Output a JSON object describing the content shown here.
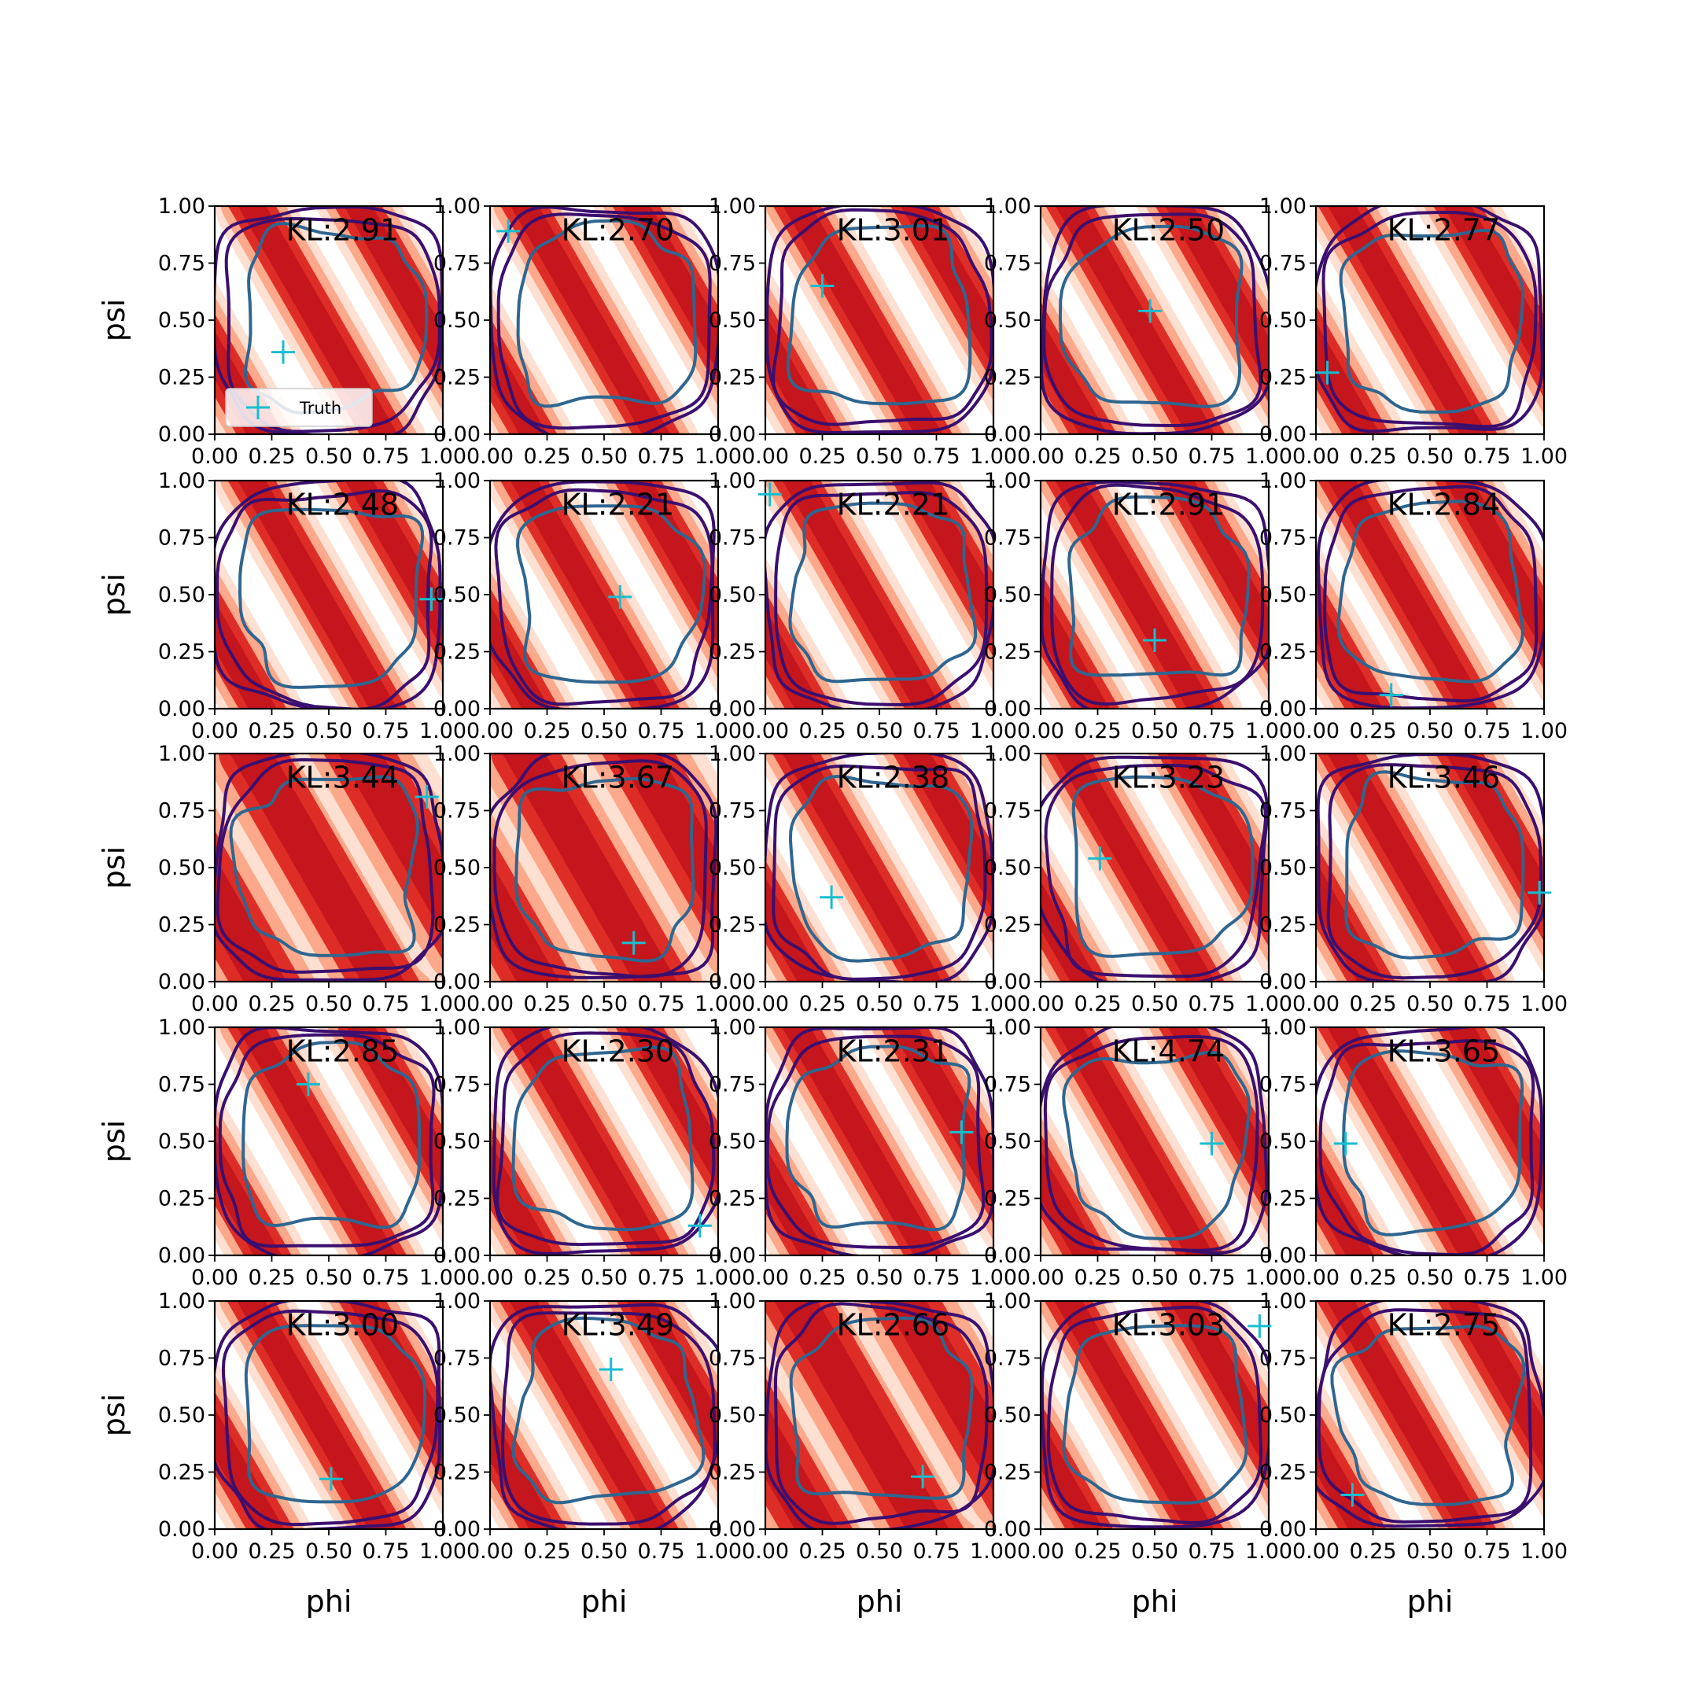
{
  "figure": {
    "xlabel": "phi",
    "ylabel": "psi",
    "legend_label": "Truth"
  },
  "colors": {
    "density_light": "#fee0d2",
    "density_mid": "#fca88a",
    "density_dark": "#de2d26",
    "density_darker": "#c4161c",
    "contour_outer": "#3b0f6f",
    "contour_inner": "#2f6690",
    "truth_marker": "#17becf"
  },
  "chart_data": {
    "type": "scatter",
    "rows": 5,
    "cols": 5,
    "xlim": [
      0,
      1
    ],
    "ylim": [
      0,
      1
    ],
    "xticks": [
      "0.00",
      "0.25",
      "0.50",
      "0.75",
      "1.00"
    ],
    "yticks": [
      "0.00",
      "0.25",
      "0.50",
      "0.75",
      "1.00"
    ],
    "grid": false,
    "legend_position": "lower-left of first panel",
    "panels": [
      {
        "kl_text": "KL:2.91",
        "truth": [
          0.3,
          0.36
        ]
      },
      {
        "kl_text": "KL:2.70",
        "truth": [
          0.08,
          0.89
        ]
      },
      {
        "kl_text": "KL:3.01",
        "truth": [
          0.25,
          0.65
        ]
      },
      {
        "kl_text": "KL:2.50",
        "truth": [
          0.48,
          0.54
        ]
      },
      {
        "kl_text": "KL:2.77",
        "truth": [
          0.05,
          0.27
        ]
      },
      {
        "kl_text": "KL:2.48",
        "truth": [
          0.95,
          0.48
        ]
      },
      {
        "kl_text": "KL:2.21",
        "truth": [
          0.57,
          0.49
        ]
      },
      {
        "kl_text": "KL:2.21",
        "truth": [
          0.02,
          0.94
        ]
      },
      {
        "kl_text": "KL:2.91",
        "truth": [
          0.5,
          0.3
        ]
      },
      {
        "kl_text": "KL:2.84",
        "truth": [
          0.33,
          0.06
        ]
      },
      {
        "kl_text": "KL:3.44",
        "truth": [
          0.93,
          0.81
        ]
      },
      {
        "kl_text": "KL:3.67",
        "truth": [
          0.63,
          0.17
        ]
      },
      {
        "kl_text": "KL:2.38",
        "truth": [
          0.29,
          0.37
        ]
      },
      {
        "kl_text": "KL:3.23",
        "truth": [
          0.26,
          0.54
        ]
      },
      {
        "kl_text": "KL:3.46",
        "truth": [
          0.98,
          0.39
        ]
      },
      {
        "kl_text": "KL:2.85",
        "truth": [
          0.41,
          0.75
        ]
      },
      {
        "kl_text": "KL:2.30",
        "truth": [
          0.92,
          0.13
        ]
      },
      {
        "kl_text": "KL:2.31",
        "truth": [
          0.86,
          0.54
        ]
      },
      {
        "kl_text": "KL:4.74",
        "truth": [
          0.75,
          0.49
        ]
      },
      {
        "kl_text": "KL:3.65",
        "truth": [
          0.13,
          0.49
        ]
      },
      {
        "kl_text": "KL:3.00",
        "truth": [
          0.51,
          0.22
        ]
      },
      {
        "kl_text": "KL:3.49",
        "truth": [
          0.53,
          0.7
        ]
      },
      {
        "kl_text": "KL:2.66",
        "truth": [
          0.69,
          0.23
        ]
      },
      {
        "kl_text": "KL:3.03",
        "truth": [
          0.96,
          0.89
        ]
      },
      {
        "kl_text": "KL:2.75",
        "truth": [
          0.16,
          0.15
        ]
      }
    ]
  }
}
